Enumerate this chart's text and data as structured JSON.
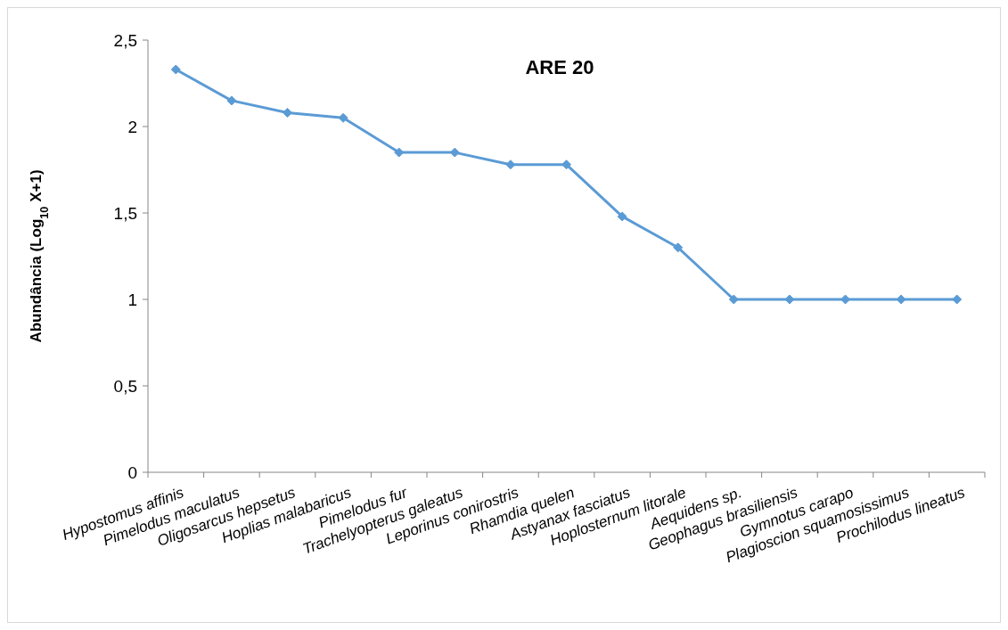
{
  "chart_data": {
    "type": "line",
    "title": "ARE 20",
    "ylabel": "Abundância (Log$_{10}$ X+1)",
    "categories": [
      "Hypostomus affinis",
      "Pimelodus maculatus",
      "Oligosarcus hepsetus",
      "Hoplias malabaricus",
      "Pimelodus fur",
      "Trachelyopterus galeatus",
      "Leporinus conirostris",
      "Rhamdia quelen",
      "Astyanax fasciatus",
      "Hoplosternum litorale",
      "Aequidens sp.",
      "Geophagus brasiliensis",
      "Gymnotus carapo",
      "Plagioscion squamosissimus",
      "Prochilodus lineatus"
    ],
    "series": [
      {
        "color": "#5b9bd5",
        "values": [
          2.33,
          2.15,
          2.08,
          2.05,
          1.85,
          1.85,
          1.78,
          1.78,
          1.48,
          1.3,
          1.0,
          1.0,
          1.0,
          1.0,
          1.0
        ]
      }
    ],
    "ylim": [
      0,
      2.5
    ],
    "yticks": [
      0,
      {
        "value": 0.5,
        "label": "0,5"
      },
      1,
      {
        "value": 1.5,
        "label": "1,5"
      },
      2,
      {
        "value": 2.5,
        "label": "2,5"
      }
    ],
    "grid": false,
    "marker": "diamond",
    "line_style": "solid"
  }
}
